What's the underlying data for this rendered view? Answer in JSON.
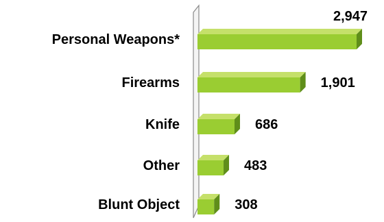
{
  "chart_data": {
    "type": "bar",
    "orientation": "horizontal",
    "title": "",
    "xlabel": "",
    "ylabel": "",
    "categories": [
      "Personal Weapons*",
      "Firearms",
      "Knife",
      "Other",
      "Blunt Object"
    ],
    "values": [
      2947,
      1901,
      686,
      483,
      308
    ],
    "value_labels": [
      "2,947",
      "1,901",
      "686",
      "483",
      "308"
    ],
    "xlim": [
      0,
      2947
    ],
    "grid": false,
    "legend": "none",
    "colors": {
      "bar_front": "#9acd32",
      "bar_top": "#c5e06a",
      "bar_side": "#5f8e1a",
      "axis_wall": "#8a8a8a"
    }
  }
}
